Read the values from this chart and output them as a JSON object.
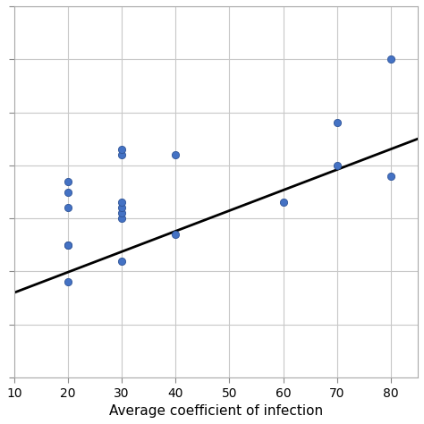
{
  "scatter_x": [
    20,
    20,
    20,
    20,
    20,
    20,
    30,
    30,
    30,
    30,
    30,
    30,
    30,
    40,
    40,
    60,
    70,
    70,
    80,
    80
  ],
  "scatter_y": [
    55,
    55,
    62,
    65,
    67,
    48,
    72,
    73,
    60,
    61,
    62,
    63,
    52,
    72,
    57,
    63,
    78,
    70,
    68,
    90
  ],
  "trend_x": [
    10,
    85
  ],
  "trend_y": [
    46,
    75
  ],
  "dot_color": "#4472C4",
  "dot_edgecolor": "#2F5496",
  "line_color": "black",
  "xlabel": "Average coefficient of infection",
  "xlim": [
    10,
    85
  ],
  "ylim": [
    30,
    100
  ],
  "xticks": [
    10,
    20,
    30,
    40,
    50,
    60,
    70,
    80
  ],
  "yticks": [
    30,
    40,
    50,
    60,
    70,
    80,
    90,
    100
  ],
  "grid_color": "#C8C8C8",
  "bg_color": "#FFFFFF",
  "dot_size": 35,
  "line_width": 2.0
}
